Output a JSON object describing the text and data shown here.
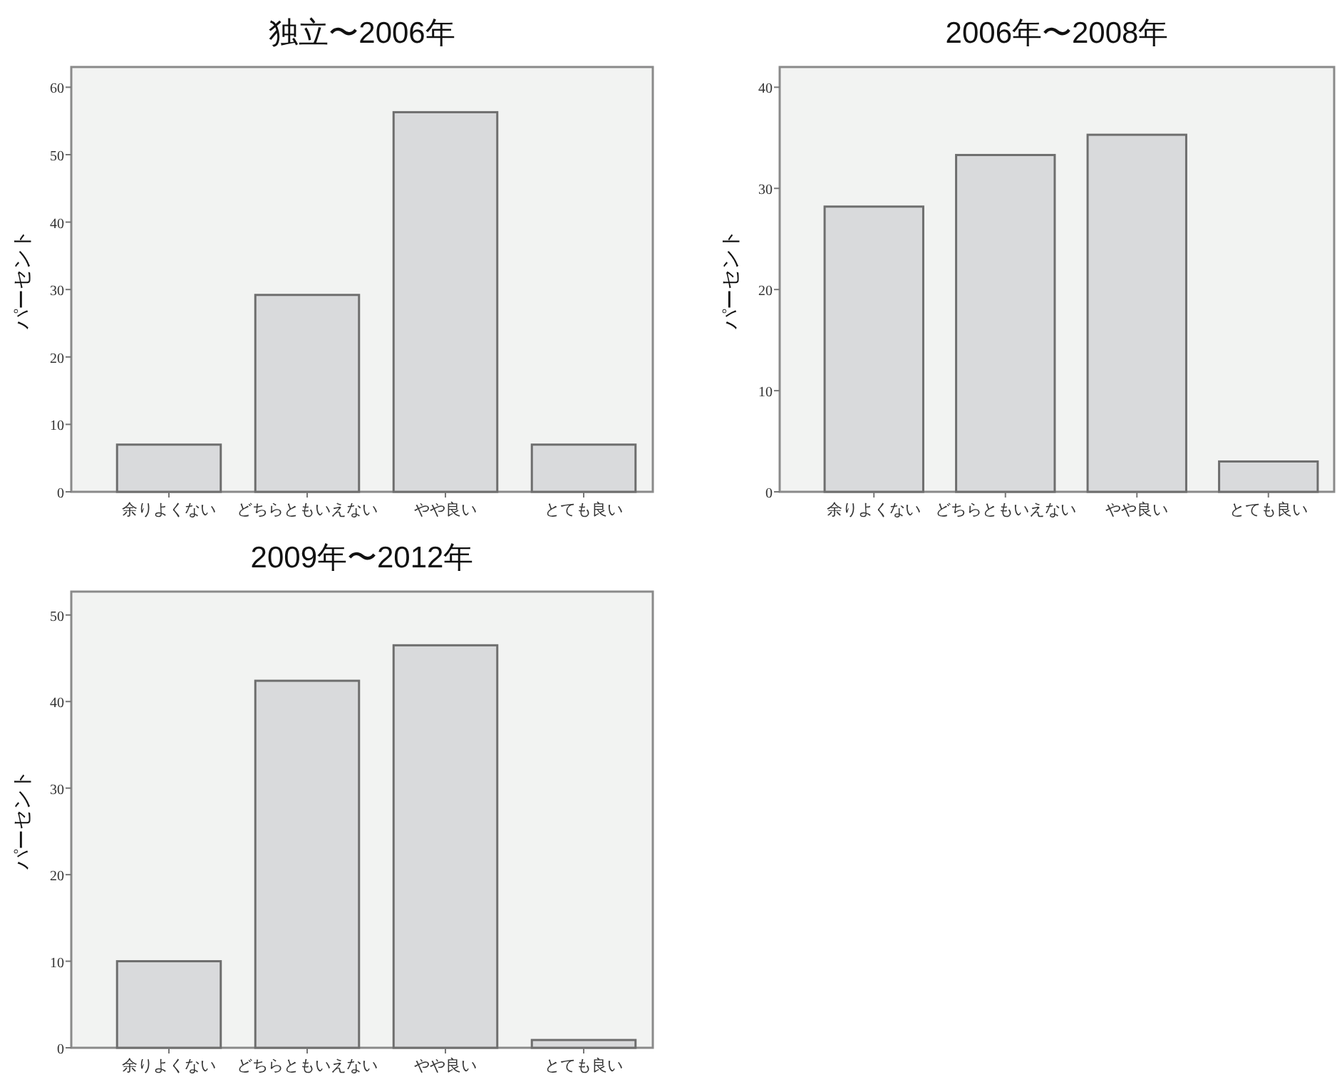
{
  "chart_data": [
    {
      "type": "bar",
      "title": "独立〜2006年",
      "ylabel": "パーセント",
      "categories": [
        "余りよくない",
        "どちらともいえない",
        "やや良い",
        "とても良い"
      ],
      "values": [
        7.0,
        29.2,
        56.3,
        7.0
      ],
      "color": "#d9dadc",
      "ylim": [
        0,
        63
      ],
      "yticks": [
        0,
        10,
        20,
        30,
        40,
        50,
        60
      ],
      "grid": false
    },
    {
      "type": "bar",
      "title": "2006年〜2008年",
      "ylabel": "パーセント",
      "categories": [
        "余りよくない",
        "どちらともいえない",
        "やや良い",
        "とても良い"
      ],
      "values": [
        28.2,
        33.3,
        35.3,
        3.0
      ],
      "color": "#d9dadc",
      "ylim": [
        0,
        42
      ],
      "yticks": [
        0,
        10,
        20,
        30,
        40
      ],
      "grid": false
    },
    {
      "type": "bar",
      "title": "2009年〜2012年",
      "ylabel": "パーセント",
      "categories": [
        "余りよくない",
        "どちらともいえない",
        "やや良い",
        "とても良い"
      ],
      "values": [
        10.0,
        42.4,
        46.5,
        0.9
      ],
      "color": "#d9dadc",
      "ylim": [
        0,
        52.7
      ],
      "yticks": [
        0,
        10,
        20,
        30,
        40,
        50
      ],
      "grid": false
    }
  ]
}
